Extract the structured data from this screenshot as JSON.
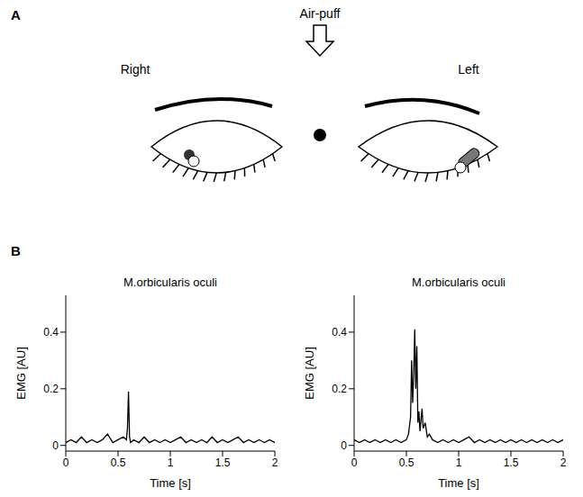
{
  "panels": {
    "A": {
      "label": "A",
      "stimulus": "Air-puff",
      "eyes": [
        "Right",
        "Left"
      ]
    },
    "B": {
      "label": "B"
    }
  },
  "chart_data": [
    {
      "type": "line",
      "title": "M.orbicularis oculi",
      "x_label": "Time [s]",
      "y_label": "EMG [AU]",
      "x": [
        0,
        0.05,
        0.1,
        0.15,
        0.2,
        0.25,
        0.3,
        0.35,
        0.4,
        0.45,
        0.5,
        0.55,
        0.58,
        0.59,
        0.6,
        0.61,
        0.62,
        0.65,
        0.7,
        0.75,
        0.8,
        0.85,
        0.9,
        0.95,
        1,
        1.05,
        1.1,
        1.15,
        1.2,
        1.25,
        1.3,
        1.35,
        1.4,
        1.45,
        1.5,
        1.55,
        1.6,
        1.65,
        1.7,
        1.75,
        1.8,
        1.85,
        1.9,
        1.95,
        2
      ],
      "values": [
        0.01,
        0.02,
        0.01,
        0.03,
        0.01,
        0.02,
        0.01,
        0.02,
        0.04,
        0.01,
        0.02,
        0.03,
        0.02,
        0.06,
        0.19,
        0.03,
        0.01,
        0.02,
        0.01,
        0.03,
        0.01,
        0.02,
        0.01,
        0.02,
        0.01,
        0.02,
        0.03,
        0.01,
        0.02,
        0.01,
        0.02,
        0.01,
        0.03,
        0.01,
        0.02,
        0.01,
        0.02,
        0.03,
        0.01,
        0.02,
        0.01,
        0.02,
        0.01,
        0.02,
        0.01
      ],
      "color": "#000000",
      "xlim": [
        0,
        2
      ],
      "xticks": [
        0,
        0.5,
        1,
        1.5,
        2
      ],
      "ylim": [
        -0.02,
        0.53
      ],
      "yticks": [
        0,
        0.2,
        0.4
      ],
      "grid": false
    },
    {
      "type": "line",
      "title": "M.orbicularis oculi",
      "x_label": "Time [s]",
      "y_label": "EMG [AU]",
      "x": [
        0,
        0.05,
        0.1,
        0.15,
        0.2,
        0.25,
        0.3,
        0.35,
        0.4,
        0.45,
        0.5,
        0.52,
        0.54,
        0.55,
        0.56,
        0.57,
        0.58,
        0.59,
        0.6,
        0.61,
        0.62,
        0.63,
        0.64,
        0.65,
        0.66,
        0.68,
        0.7,
        0.72,
        0.75,
        0.8,
        0.85,
        0.9,
        0.95,
        1,
        1.05,
        1.1,
        1.15,
        1.2,
        1.25,
        1.3,
        1.35,
        1.4,
        1.45,
        1.5,
        1.55,
        1.6,
        1.65,
        1.7,
        1.75,
        1.8,
        1.85,
        1.9,
        1.95,
        2
      ],
      "values": [
        0.02,
        0.01,
        0.02,
        0.01,
        0.02,
        0.01,
        0.02,
        0.01,
        0.02,
        0.01,
        0.02,
        0.04,
        0.1,
        0.3,
        0.15,
        0.25,
        0.41,
        0.2,
        0.35,
        0.08,
        0.12,
        0.05,
        0.09,
        0.13,
        0.06,
        0.08,
        0.03,
        0.04,
        0.02,
        0.01,
        0.02,
        0.01,
        0.02,
        0.01,
        0.02,
        0.03,
        0.01,
        0.02,
        0.01,
        0.02,
        0.01,
        0.02,
        0.01,
        0.02,
        0.01,
        0.02,
        0.01,
        0.02,
        0.01,
        0.02,
        0.01,
        0.02,
        0.01,
        0.02
      ],
      "color": "#000000",
      "xlim": [
        0,
        2
      ],
      "xticks": [
        0,
        0.5,
        1,
        1.5,
        2
      ],
      "ylim": [
        -0.02,
        0.53
      ],
      "yticks": [
        0,
        0.2,
        0.4
      ],
      "grid": false
    }
  ]
}
